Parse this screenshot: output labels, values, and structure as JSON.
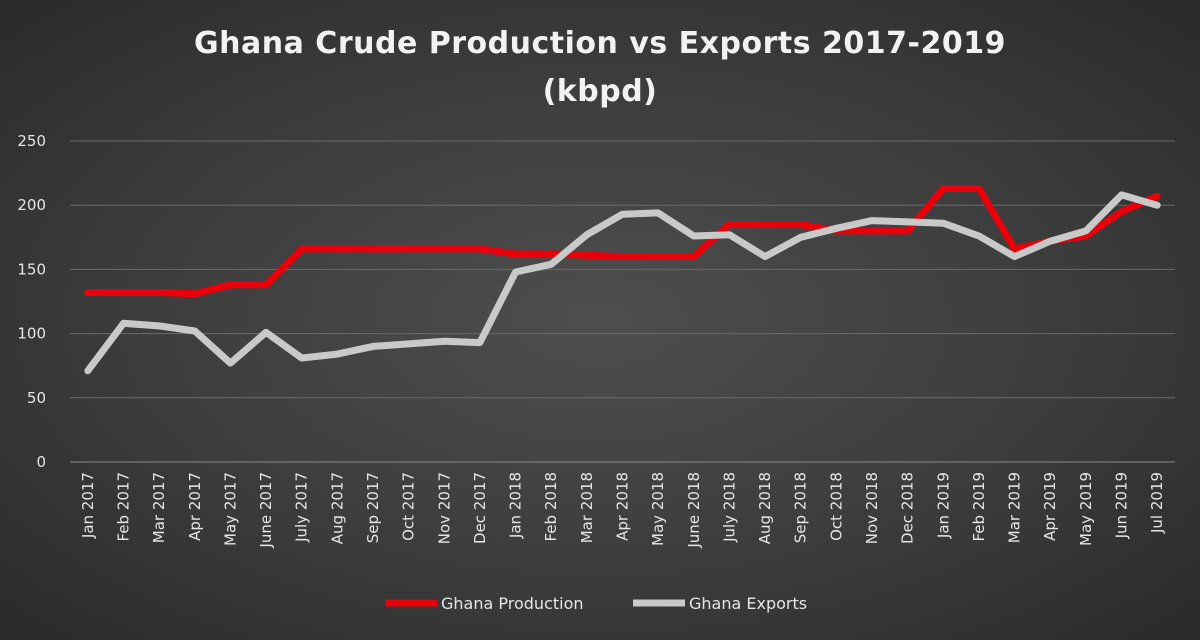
{
  "chart_data": {
    "type": "line",
    "title": "Ghana Crude Production vs Exports 2017-2019",
    "title_line2": "(kbpd)",
    "xlabel": "",
    "ylabel": "",
    "ylim": [
      0,
      250
    ],
    "yticks": [
      0,
      50,
      100,
      150,
      200,
      250
    ],
    "grid": true,
    "legend_position": "bottom",
    "categories": [
      "Jan 2017",
      "Feb 2017",
      "Mar 2017",
      "Apr 2017",
      "May 2017",
      "June 2017",
      "July 2017",
      "Aug 2017",
      "Sep 2017",
      "Oct 2017",
      "Nov 2017",
      "Dec 2017",
      "Jan 2018",
      "Feb 2018",
      "Mar 2018",
      "Apr 2018",
      "May 2018",
      "June 2018",
      "July 2018",
      "Aug 2018",
      "Sep 2018",
      "Oct 2018",
      "Nov 2018",
      "Dec 2018",
      "Jan 2019",
      "Feb 2019",
      "Mar 2019",
      "Apr 2019",
      "May 2019",
      "Jun 2019",
      "Jul 2019"
    ],
    "series": [
      {
        "name": "Ghana Production",
        "color": "#e8000b",
        "values": [
          132,
          132,
          132,
          131,
          138,
          138,
          166,
          166,
          166,
          166,
          166,
          166,
          162,
          162,
          161,
          160,
          160,
          160,
          185,
          185,
          185,
          180,
          180,
          180,
          213,
          213,
          166,
          172,
          176,
          195,
          207
        ]
      },
      {
        "name": "Ghana Exports",
        "color": "#c9c9c9",
        "values": [
          71,
          108,
          106,
          102,
          77,
          101,
          81,
          84,
          90,
          92,
          94,
          93,
          148,
          154,
          177,
          193,
          194,
          176,
          177,
          160,
          175,
          182,
          188,
          187,
          186,
          176,
          160,
          172,
          180,
          208,
          200
        ]
      }
    ]
  }
}
